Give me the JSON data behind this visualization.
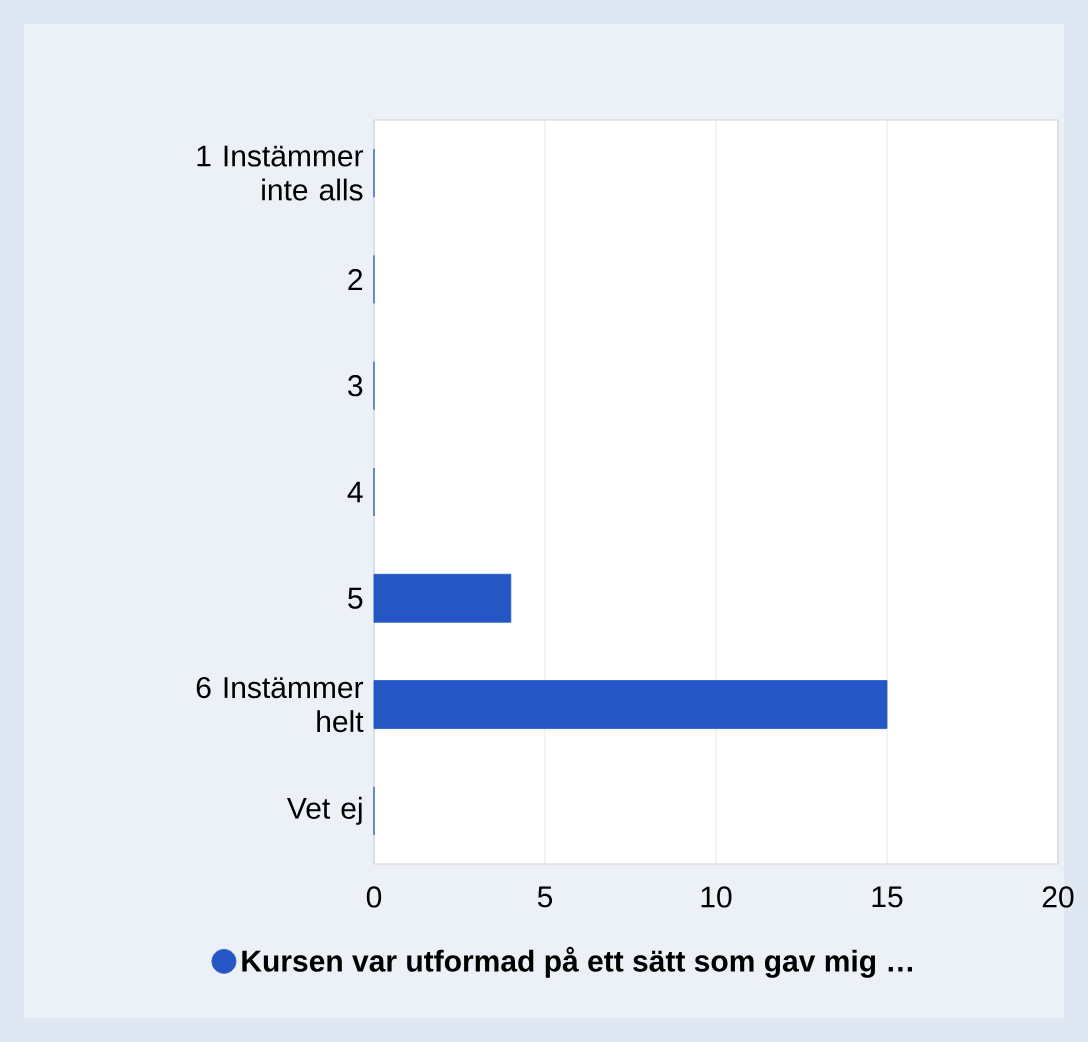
{
  "chart_data": {
    "type": "bar",
    "orientation": "horizontal",
    "categories": [
      "1 Instämmer inte alls",
      "2",
      "3",
      "4",
      "5",
      "6 Instämmer helt",
      "Vet ej"
    ],
    "series": [
      {
        "name": "Kursen var utformad på ett sätt som gav mig …",
        "color": "#2457c5",
        "values": [
          0,
          0,
          0,
          0,
          4,
          15,
          0
        ]
      }
    ],
    "xlim": [
      0,
      20
    ],
    "xticks": [
      0,
      5,
      10,
      15,
      20
    ],
    "grid": "x",
    "legend": "bottom"
  }
}
